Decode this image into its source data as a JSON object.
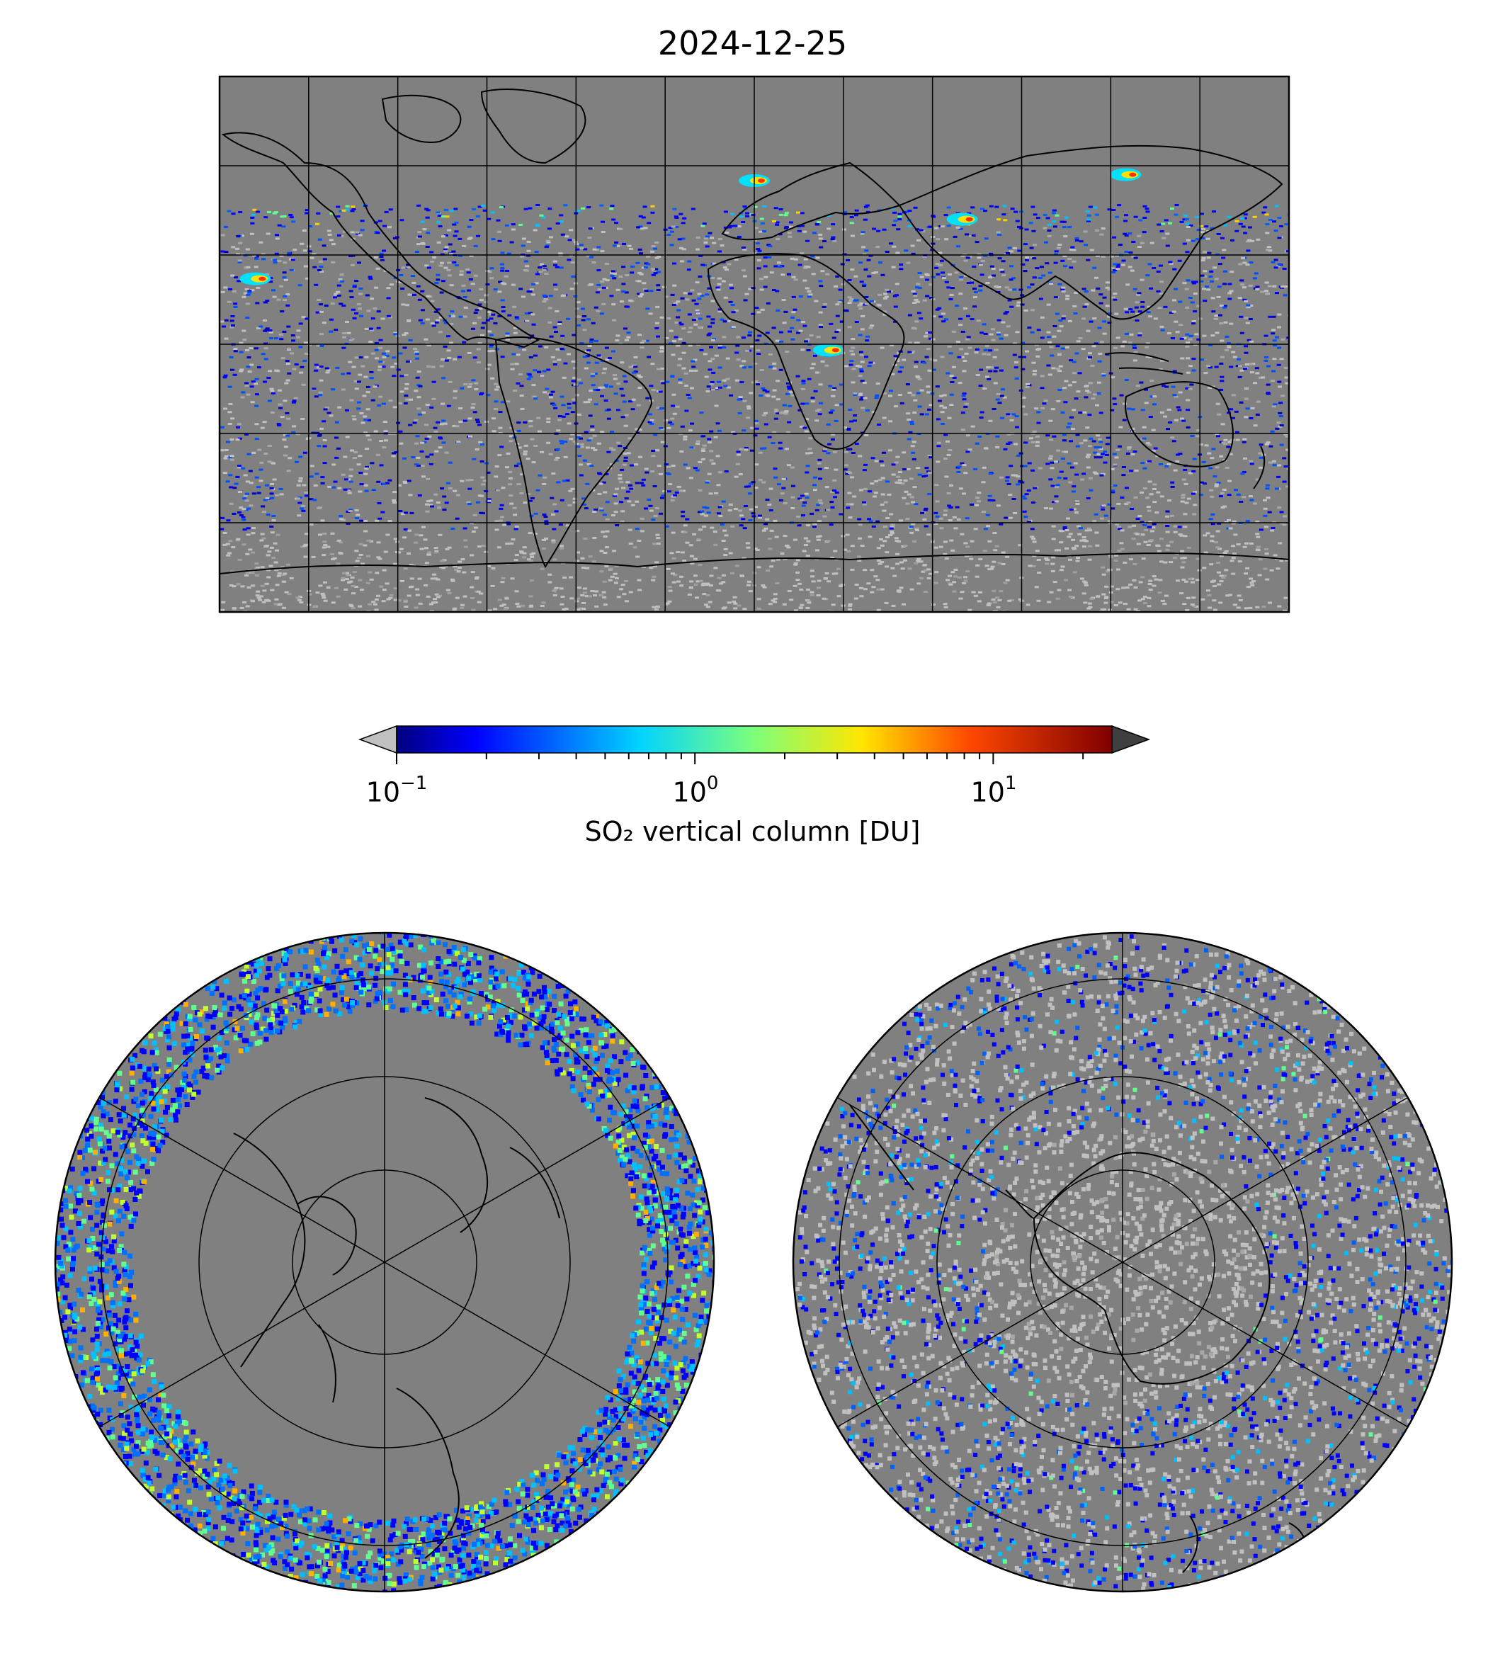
{
  "figure": {
    "title": "2024-12-25"
  },
  "colorbar": {
    "label": "SO₂ vertical column [DU]",
    "scale": "log",
    "range": [
      0.1,
      25
    ],
    "colormap": "jet",
    "under_color": "#c0c0c0",
    "over_color": "#3f3f3f",
    "ticks": [
      {
        "base": "10",
        "exp": "−1",
        "value": 0.1
      },
      {
        "base": "10",
        "exp": "0",
        "value": 1
      },
      {
        "base": "10",
        "exp": "1",
        "value": 10
      }
    ]
  },
  "chart_data": {
    "type": "heatmap",
    "panels": [
      {
        "name": "global",
        "projection": "plate-carree",
        "lon_range": [
          -180,
          180
        ],
        "lat_range": [
          -90,
          90
        ],
        "grid_spacing_deg": 30
      },
      {
        "name": "north-polar",
        "projection": "north-polar-stereographic",
        "grid": true
      },
      {
        "name": "south-polar",
        "projection": "south-polar-stereographic",
        "grid": true
      }
    ],
    "colors": {
      "no_data": "#808080",
      "below_range": "#c0c0c0",
      "low": "#0000ff",
      "high": "#ff0000"
    },
    "notable_features": [
      {
        "lon": -168,
        "lat": 22
      },
      {
        "lon": 25,
        "lat": -2
      },
      {
        "lon": 0,
        "lat": 55
      },
      {
        "lon": 70,
        "lat": 42
      },
      {
        "lon": 125,
        "lat": 57
      }
    ]
  }
}
